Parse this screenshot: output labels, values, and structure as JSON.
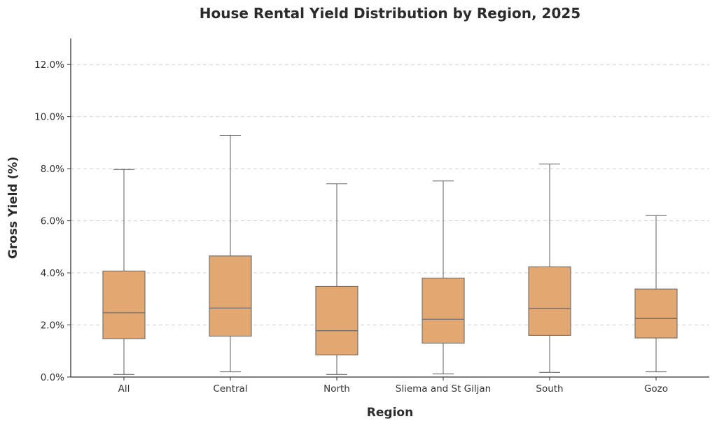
{
  "chart_data": {
    "type": "box",
    "title": "House Rental Yield Distribution by Region, 2025",
    "xlabel": "Region",
    "ylabel": "Gross Yield (%)",
    "ylim": [
      0,
      13
    ],
    "yticks": [
      0,
      2,
      4,
      6,
      8,
      10,
      12
    ],
    "ytick_labels": [
      "0.0%",
      "2.0%",
      "4.0%",
      "6.0%",
      "8.0%",
      "10.0%",
      "12.0%"
    ],
    "grid": "horizontal-dashed",
    "colors": {
      "box_fill": "#e3a771",
      "edge": "#6b6b6b",
      "grid": "#d3d3d3",
      "axis": "#333333",
      "text": "#2b2b2b"
    },
    "categories": [
      "All",
      "Central",
      "North",
      "Sliema and St Giljan",
      "South",
      "Gozo"
    ],
    "boxes": [
      {
        "label": "All",
        "whislo": 0.1,
        "q1": 1.47,
        "med": 2.47,
        "q3": 4.07,
        "whishi": 7.97
      },
      {
        "label": "Central",
        "whislo": 0.2,
        "q1": 1.57,
        "med": 2.65,
        "q3": 4.65,
        "whishi": 9.28
      },
      {
        "label": "North",
        "whislo": 0.1,
        "q1": 0.85,
        "med": 1.78,
        "q3": 3.48,
        "whishi": 7.42
      },
      {
        "label": "Sliema and St Giljan",
        "whislo": 0.12,
        "q1": 1.3,
        "med": 2.22,
        "q3": 3.8,
        "whishi": 7.53
      },
      {
        "label": "South",
        "whislo": 0.18,
        "q1": 1.6,
        "med": 2.63,
        "q3": 4.23,
        "whishi": 8.18
      },
      {
        "label": "Gozo",
        "whislo": 0.2,
        "q1": 1.5,
        "med": 2.25,
        "q3": 3.38,
        "whishi": 6.2
      }
    ]
  }
}
